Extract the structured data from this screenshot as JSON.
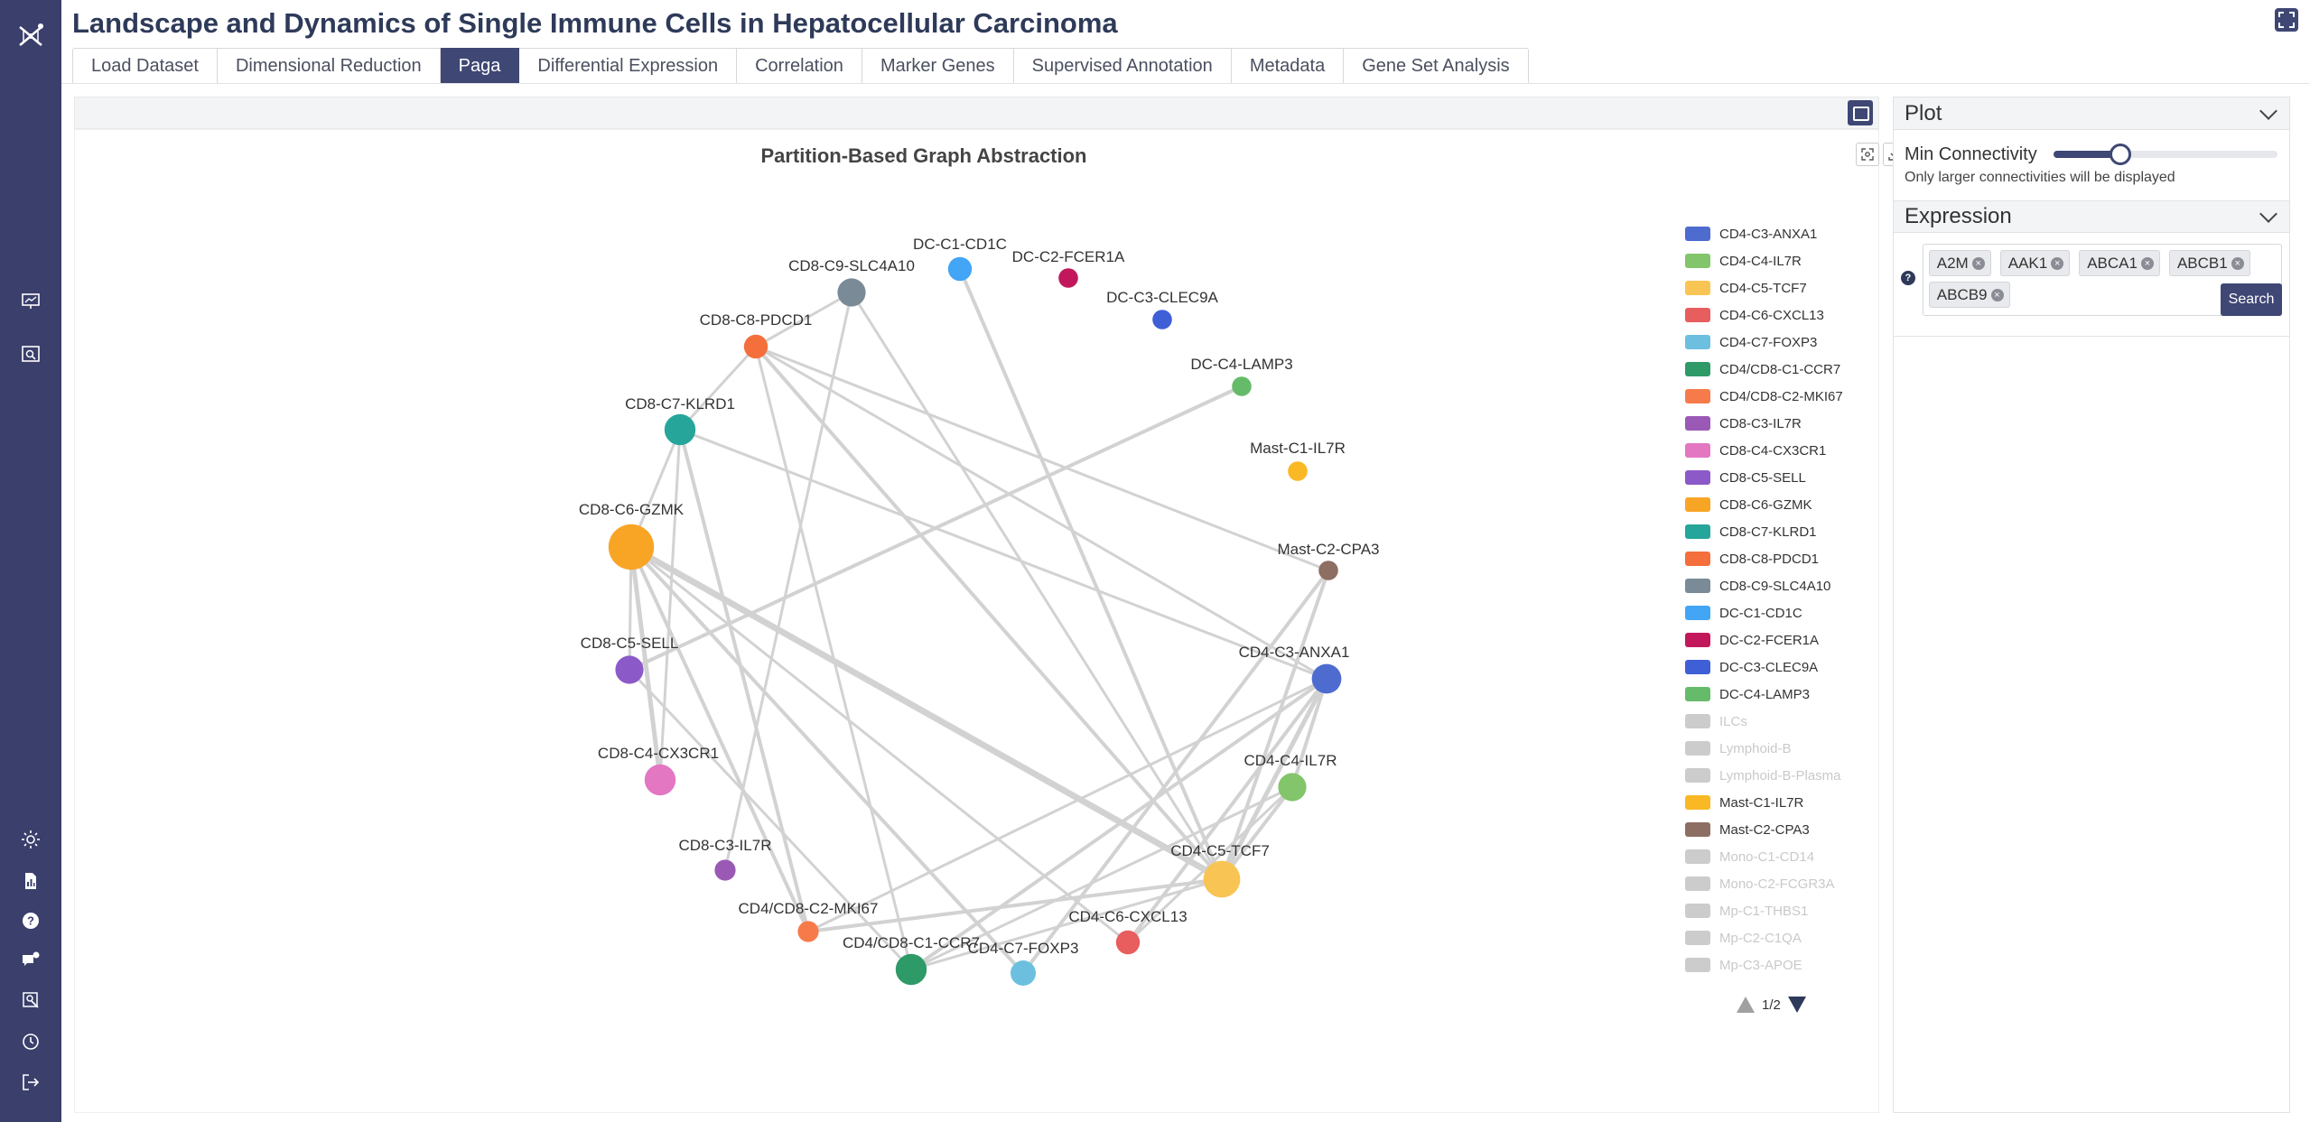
{
  "app": {
    "title": "Landscape and Dynamics of Single Immune Cells in Hepatocellular Carcinoma"
  },
  "tabs": [
    {
      "label": "Load Dataset",
      "active": false
    },
    {
      "label": "Dimensional Reduction",
      "active": false
    },
    {
      "label": "Paga",
      "active": true
    },
    {
      "label": "Differential Expression",
      "active": false
    },
    {
      "label": "Correlation",
      "active": false
    },
    {
      "label": "Marker Genes",
      "active": false
    },
    {
      "label": "Supervised Annotation",
      "active": false
    },
    {
      "label": "Metadata",
      "active": false
    },
    {
      "label": "Gene Set Analysis",
      "active": false
    }
  ],
  "sidebar_icons": [
    "logo-icon",
    "presentation-icon",
    "image-search-icon",
    "sun-icon",
    "report-icon",
    "help-icon",
    "chat-icon",
    "user-search-icon",
    "history-icon",
    "logout-icon"
  ],
  "plot": {
    "title": "Partition-Based Graph Abstraction",
    "nodes": [
      {
        "label": "CD4-C3-ANXA1",
        "color": "#4e6bd0",
        "size": 1.3
      },
      {
        "label": "CD4-C4-IL7R",
        "color": "#82c56a",
        "size": 1.2
      },
      {
        "label": "CD4-C5-TCF7",
        "color": "#f8c453",
        "size": 1.8
      },
      {
        "label": "CD4-C6-CXCL13",
        "color": "#e85d5d",
        "size": 0.9
      },
      {
        "label": "CD4-C7-FOXP3",
        "color": "#6dbfe0",
        "size": 1.0
      },
      {
        "label": "CD4/CD8-C1-CCR7",
        "color": "#2e9a67",
        "size": 1.4
      },
      {
        "label": "CD4/CD8-C2-MKI67",
        "color": "#f77b4a",
        "size": 0.7
      },
      {
        "label": "CD8-C3-IL7R",
        "color": "#9b59b6",
        "size": 0.7
      },
      {
        "label": "CD8-C4-CX3CR1",
        "color": "#e377c2",
        "size": 1.4
      },
      {
        "label": "CD8-C5-SELL",
        "color": "#8c5ac8",
        "size": 1.2
      },
      {
        "label": "CD8-C6-GZMK",
        "color": "#f8a526",
        "size": 2.4
      },
      {
        "label": "CD8-C7-KLRD1",
        "color": "#26a69a",
        "size": 1.4
      },
      {
        "label": "CD8-C8-PDCD1",
        "color": "#f46f3c",
        "size": 0.9
      },
      {
        "label": "CD8-C9-SLC4A10",
        "color": "#7a8a96",
        "size": 1.2
      },
      {
        "label": "DC-C1-CD1C",
        "color": "#42a5f5",
        "size": 0.9
      },
      {
        "label": "DC-C2-FCER1A",
        "color": "#c2185b",
        "size": 0.6
      },
      {
        "label": "DC-C3-CLEC9A",
        "color": "#3f5fd6",
        "size": 0.6
      },
      {
        "label": "DC-C4-LAMP3",
        "color": "#66bb6a",
        "size": 0.6
      },
      {
        "label": "Mast-C1-IL7R",
        "color": "#f9b824",
        "size": 0.6
      },
      {
        "label": "Mast-C2-CPA3",
        "color": "#8d6e63",
        "size": 0.6
      }
    ],
    "edges": [
      [
        10,
        2,
        7
      ],
      [
        10,
        4,
        4
      ],
      [
        10,
        3,
        3
      ],
      [
        10,
        6,
        4
      ],
      [
        10,
        8,
        5
      ],
      [
        10,
        11,
        3
      ],
      [
        11,
        12,
        3
      ],
      [
        11,
        0,
        3
      ],
      [
        11,
        6,
        4
      ],
      [
        11,
        8,
        3
      ],
      [
        12,
        13,
        3
      ],
      [
        12,
        19,
        3
      ],
      [
        12,
        2,
        4
      ],
      [
        12,
        5,
        3
      ],
      [
        13,
        7,
        3
      ],
      [
        13,
        2,
        3
      ],
      [
        14,
        2,
        4
      ],
      [
        17,
        9,
        4
      ],
      [
        19,
        4,
        4
      ],
      [
        19,
        2,
        4
      ],
      [
        0,
        2,
        5
      ],
      [
        0,
        1,
        4
      ],
      [
        0,
        3,
        4
      ],
      [
        0,
        6,
        3
      ],
      [
        0,
        5,
        4
      ],
      [
        1,
        2,
        4
      ],
      [
        1,
        3,
        3
      ],
      [
        1,
        5,
        3
      ],
      [
        2,
        6,
        4
      ],
      [
        2,
        5,
        3
      ],
      [
        9,
        10,
        3
      ],
      [
        9,
        5,
        3
      ],
      [
        12,
        0,
        3
      ]
    ]
  },
  "legend": {
    "items": [
      {
        "label": "CD4-C3-ANXA1",
        "color": "#4e6bd0",
        "active": true
      },
      {
        "label": "CD4-C4-IL7R",
        "color": "#82c56a",
        "active": true
      },
      {
        "label": "CD4-C5-TCF7",
        "color": "#f8c453",
        "active": true
      },
      {
        "label": "CD4-C6-CXCL13",
        "color": "#e85d5d",
        "active": true
      },
      {
        "label": "CD4-C7-FOXP3",
        "color": "#6dbfe0",
        "active": true
      },
      {
        "label": "CD4/CD8-C1-CCR7",
        "color": "#2e9a67",
        "active": true
      },
      {
        "label": "CD4/CD8-C2-MKI67",
        "color": "#f77b4a",
        "active": true
      },
      {
        "label": "CD8-C3-IL7R",
        "color": "#9b59b6",
        "active": true
      },
      {
        "label": "CD8-C4-CX3CR1",
        "color": "#e377c2",
        "active": true
      },
      {
        "label": "CD8-C5-SELL",
        "color": "#8c5ac8",
        "active": true
      },
      {
        "label": "CD8-C6-GZMK",
        "color": "#f8a526",
        "active": true
      },
      {
        "label": "CD8-C7-KLRD1",
        "color": "#26a69a",
        "active": true
      },
      {
        "label": "CD8-C8-PDCD1",
        "color": "#f46f3c",
        "active": true
      },
      {
        "label": "CD8-C9-SLC4A10",
        "color": "#7a8a96",
        "active": true
      },
      {
        "label": "DC-C1-CD1C",
        "color": "#42a5f5",
        "active": true
      },
      {
        "label": "DC-C2-FCER1A",
        "color": "#c2185b",
        "active": true
      },
      {
        "label": "DC-C3-CLEC9A",
        "color": "#3f5fd6",
        "active": true
      },
      {
        "label": "DC-C4-LAMP3",
        "color": "#66bb6a",
        "active": true
      },
      {
        "label": "ILCs",
        "color": "#cccccc",
        "active": false
      },
      {
        "label": "Lymphoid-B",
        "color": "#cccccc",
        "active": false
      },
      {
        "label": "Lymphoid-B-Plasma",
        "color": "#cccccc",
        "active": false
      },
      {
        "label": "Mast-C1-IL7R",
        "color": "#f9b824",
        "active": true
      },
      {
        "label": "Mast-C2-CPA3",
        "color": "#8d6e63",
        "active": true
      },
      {
        "label": "Mono-C1-CD14",
        "color": "#cccccc",
        "active": false
      },
      {
        "label": "Mono-C2-FCGR3A",
        "color": "#cccccc",
        "active": false
      },
      {
        "label": "Mp-C1-THBS1",
        "color": "#cccccc",
        "active": false
      },
      {
        "label": "Mp-C2-C1QA",
        "color": "#cccccc",
        "active": false
      },
      {
        "label": "Mp-C3-APOE",
        "color": "#cccccc",
        "active": false
      }
    ],
    "page": "1/2"
  },
  "right_panel": {
    "plot_section": {
      "title": "Plot",
      "min_connectivity_label": "Min Connectivity",
      "min_connectivity_value": 0.3,
      "hint": "Only larger connectivities will be displayed"
    },
    "expression_section": {
      "title": "Expression",
      "genes": [
        "A2M",
        "AAK1",
        "ABCA1",
        "ABCB1",
        "ABCB9"
      ],
      "help": "?",
      "search_label": "Search"
    }
  }
}
